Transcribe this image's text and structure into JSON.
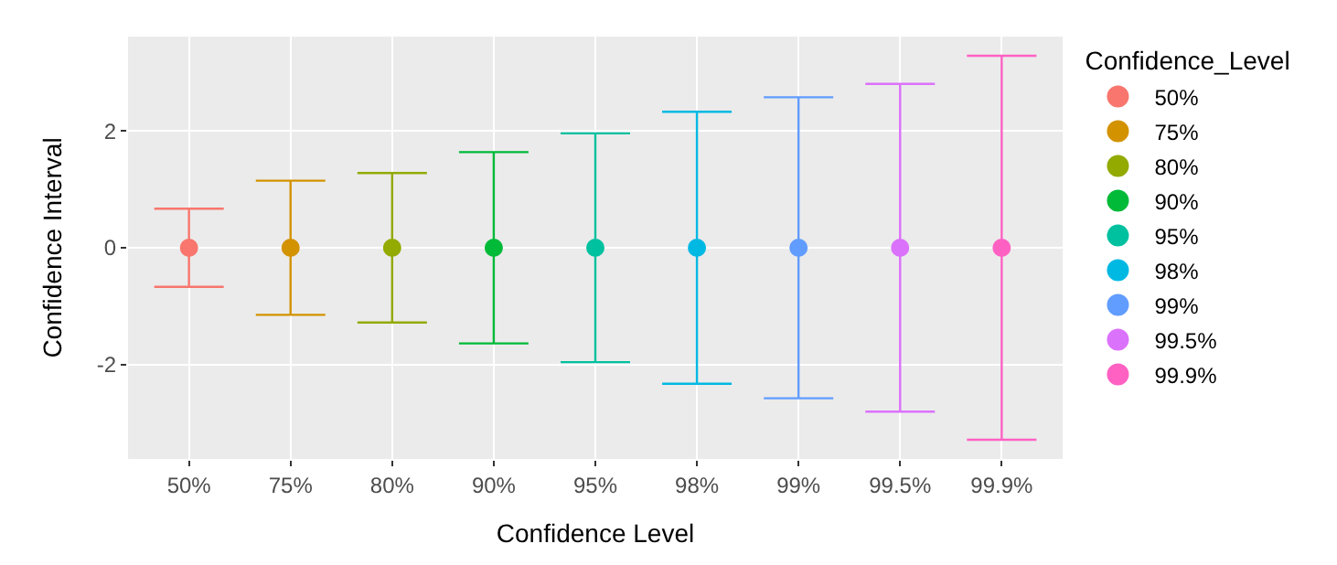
{
  "chart_data": {
    "type": "scatter",
    "xlabel": "Confidence Level",
    "ylabel": "Confidence Interval",
    "legend_title": "Confidence_Level",
    "categories": [
      "50%",
      "75%",
      "80%",
      "90%",
      "95%",
      "98%",
      "99%",
      "99.5%",
      "99.9%"
    ],
    "series": [
      {
        "name": "50%",
        "color": "#f8766d",
        "values": [
          0,
          null,
          null,
          null,
          null,
          null,
          null,
          null,
          null
        ],
        "errors": [
          0.67,
          null,
          null,
          null,
          null,
          null,
          null,
          null,
          null
        ]
      },
      {
        "name": "75%",
        "color": "#d39200",
        "values": [
          null,
          0,
          null,
          null,
          null,
          null,
          null,
          null,
          null
        ],
        "errors": [
          null,
          1.15,
          null,
          null,
          null,
          null,
          null,
          null,
          null
        ]
      },
      {
        "name": "80%",
        "color": "#93aa00",
        "values": [
          null,
          null,
          0,
          null,
          null,
          null,
          null,
          null,
          null
        ],
        "errors": [
          null,
          null,
          1.28,
          null,
          null,
          null,
          null,
          null,
          null
        ]
      },
      {
        "name": "90%",
        "color": "#00ba38",
        "values": [
          null,
          null,
          null,
          0,
          null,
          null,
          null,
          null,
          null
        ],
        "errors": [
          null,
          null,
          null,
          1.64,
          null,
          null,
          null,
          null,
          null
        ]
      },
      {
        "name": "95%",
        "color": "#00c19f",
        "values": [
          null,
          null,
          null,
          null,
          0,
          null,
          null,
          null,
          null
        ],
        "errors": [
          null,
          null,
          null,
          null,
          1.96,
          null,
          null,
          null,
          null
        ]
      },
      {
        "name": "98%",
        "color": "#00b9e3",
        "values": [
          null,
          null,
          null,
          null,
          null,
          0,
          null,
          null,
          null
        ],
        "errors": [
          null,
          null,
          null,
          null,
          null,
          2.33,
          null,
          null,
          null
        ]
      },
      {
        "name": "99%",
        "color": "#619cff",
        "values": [
          null,
          null,
          null,
          null,
          null,
          null,
          0,
          null,
          null
        ],
        "errors": [
          null,
          null,
          null,
          null,
          null,
          null,
          2.58,
          null,
          null
        ]
      },
      {
        "name": "99.5%",
        "color": "#db72fb",
        "values": [
          null,
          null,
          null,
          null,
          null,
          null,
          null,
          0,
          null
        ],
        "errors": [
          null,
          null,
          null,
          null,
          null,
          null,
          null,
          2.81,
          null
        ]
      },
      {
        "name": "99.9%",
        "color": "#ff61c3",
        "values": [
          null,
          null,
          null,
          null,
          null,
          null,
          null,
          null,
          0
        ],
        "errors": [
          null,
          null,
          null,
          null,
          null,
          null,
          null,
          null,
          3.29
        ]
      }
    ],
    "ylim": [
      -3.62,
      3.62
    ],
    "yticks": [
      -2,
      0,
      2
    ],
    "grid": true,
    "legend": "right",
    "marker": "circle"
  }
}
